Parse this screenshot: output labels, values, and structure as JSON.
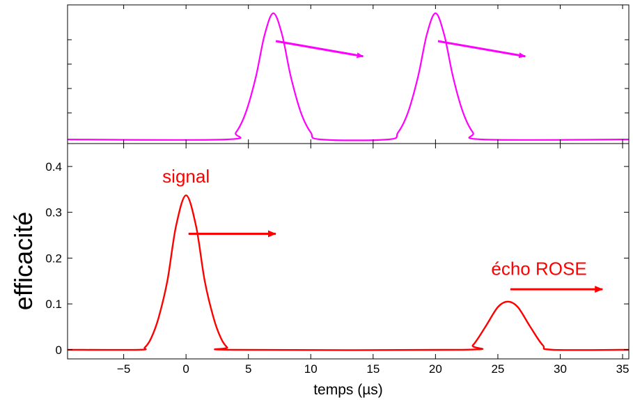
{
  "chart_data": [
    {
      "type": "line",
      "panel": "top",
      "xlim": [
        -9.5,
        35.5
      ],
      "y_tick_labels_shown": false,
      "color": "#ff00ff",
      "series": [
        {
          "points": [
            [
              -9.5,
              0.005
            ],
            [
              3.2,
              0.005
            ],
            [
              4.0,
              0.06
            ],
            [
              4.8,
              0.22
            ],
            [
              5.6,
              0.5
            ],
            [
              6.3,
              0.83
            ],
            [
              7.0,
              1.0
            ],
            [
              7.7,
              0.83
            ],
            [
              8.4,
              0.5
            ],
            [
              9.2,
              0.22
            ],
            [
              10.0,
              0.06
            ],
            [
              10.8,
              0.005
            ],
            [
              16.2,
              0.005
            ],
            [
              17.0,
              0.06
            ],
            [
              17.8,
              0.22
            ],
            [
              18.6,
              0.5
            ],
            [
              19.3,
              0.83
            ],
            [
              20.0,
              1.0
            ],
            [
              20.7,
              0.83
            ],
            [
              21.4,
              0.5
            ],
            [
              22.2,
              0.22
            ],
            [
              23.0,
              0.06
            ],
            [
              23.8,
              0.005
            ],
            [
              35.5,
              0.005
            ]
          ]
        }
      ],
      "arrows": [
        {
          "from": [
            7.2,
            0.78
          ],
          "to": [
            14.2,
            0.66
          ]
        },
        {
          "from": [
            20.2,
            0.78
          ],
          "to": [
            27.2,
            0.66
          ]
        }
      ]
    },
    {
      "type": "line",
      "panel": "bottom",
      "xlabel": "temps (µs)",
      "ylabel": "efficacité",
      "xlim": [
        -9.5,
        35.5
      ],
      "ylim": [
        -0.02,
        0.45
      ],
      "x_ticks": [
        -5,
        0,
        5,
        10,
        15,
        20,
        25,
        30,
        35
      ],
      "x_tick_labels": [
        "−5",
        "0",
        "5",
        "10",
        "15",
        "20",
        "25",
        "30",
        "35"
      ],
      "y_ticks": [
        0,
        0.1,
        0.2,
        0.3,
        0.4
      ],
      "y_tick_labels": [
        "0",
        "0.1",
        "0.2",
        "0.3",
        "0.4"
      ],
      "color": "#ff0000",
      "series": [
        {
          "points": [
            [
              -9.5,
              0.0
            ],
            [
              -3.8,
              0.0
            ],
            [
              -3.3,
              0.005
            ],
            [
              -2.8,
              0.025
            ],
            [
              -2.2,
              0.07
            ],
            [
              -1.5,
              0.15
            ],
            [
              -0.8,
              0.27
            ],
            [
              0.0,
              0.337
            ],
            [
              0.8,
              0.27
            ],
            [
              1.5,
              0.15
            ],
            [
              2.2,
              0.07
            ],
            [
              2.8,
              0.025
            ],
            [
              3.3,
              0.005
            ],
            [
              3.8,
              0.0
            ],
            [
              22.2,
              0.0
            ],
            [
              23.0,
              0.01
            ],
            [
              24.0,
              0.05
            ],
            [
              25.0,
              0.093
            ],
            [
              25.8,
              0.105
            ],
            [
              26.6,
              0.093
            ],
            [
              27.6,
              0.05
            ],
            [
              28.6,
              0.01
            ],
            [
              29.4,
              0.0
            ],
            [
              35.5,
              0.0
            ]
          ]
        }
      ],
      "annotations": [
        {
          "text": "signal",
          "x": 0,
          "y": 0.365,
          "color": "#ff0000"
        },
        {
          "text": "écho ROSE",
          "x": 28.3,
          "y": 0.163,
          "color": "#ff0000"
        }
      ],
      "arrows": [
        {
          "from": [
            0.2,
            0.253
          ],
          "to": [
            7.3,
            0.253
          ]
        },
        {
          "from": [
            26.0,
            0.132
          ],
          "to": [
            33.5,
            0.132
          ]
        }
      ]
    }
  ]
}
